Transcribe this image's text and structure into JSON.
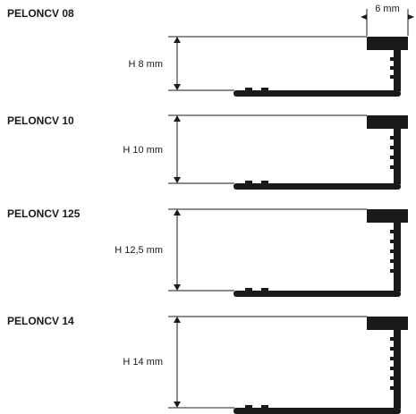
{
  "profiles": [
    {
      "code": "PELONCV 08",
      "height_label": "H 8 mm"
    },
    {
      "code": "PELONCV 10",
      "height_label": "H 10 mm"
    },
    {
      "code": "PELONCV 125",
      "height_label": "H 12,5 mm"
    },
    {
      "code": "PELONCV 14",
      "height_label": "H 14 mm"
    }
  ],
  "width_label": "6 mm",
  "colors": {
    "profile": "#1a1a1a",
    "line": "#1a1a1a",
    "background": "#ffffff"
  }
}
